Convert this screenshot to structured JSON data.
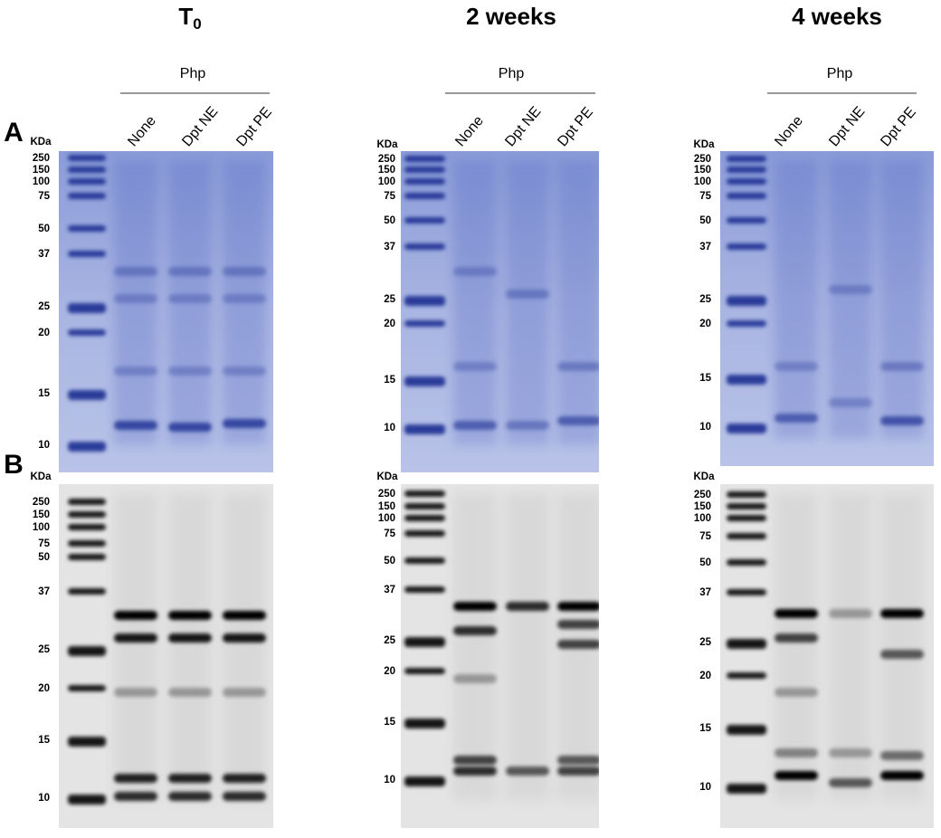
{
  "row_labels": [
    "A",
    "B"
  ],
  "columns": [
    {
      "title": {
        "text": "T",
        "subscript": "0"
      },
      "group_label": "Php",
      "lanes": [
        "None",
        "Dpt NE",
        "Dpt PE"
      ],
      "gel": {
        "unit_label": "KDa",
        "markers": [
          250,
          150,
          100,
          75,
          50,
          37,
          25,
          20,
          15,
          10
        ]
      },
      "blot": {
        "unit_label": "KDa",
        "markers": [
          250,
          150,
          100,
          75,
          50,
          37,
          25,
          20,
          15,
          10
        ]
      }
    },
    {
      "title": {
        "text": "2 weeks"
      },
      "group_label": "Php",
      "lanes": [
        "None",
        "Dpt NE",
        "Dpt PE"
      ],
      "gel": {
        "unit_label": "KDa",
        "markers": [
          250,
          150,
          100,
          75,
          50,
          37,
          25,
          20,
          15,
          10
        ]
      },
      "blot": {
        "unit_label": "KDa",
        "markers": [
          250,
          150,
          100,
          75,
          50,
          37,
          25,
          20,
          15,
          10
        ]
      }
    },
    {
      "title": {
        "text": "4 weeks"
      },
      "group_label": "Php",
      "lanes": [
        "None",
        "Dpt NE",
        "Dpt PE"
      ],
      "gel": {
        "unit_label": "KDa",
        "markers": [
          250,
          150,
          100,
          75,
          50,
          37,
          25,
          20,
          15,
          10
        ]
      },
      "blot": {
        "unit_label": "KDa",
        "markers": [
          250,
          150,
          100,
          75,
          50,
          37,
          25,
          20,
          15,
          10
        ]
      }
    }
  ]
}
